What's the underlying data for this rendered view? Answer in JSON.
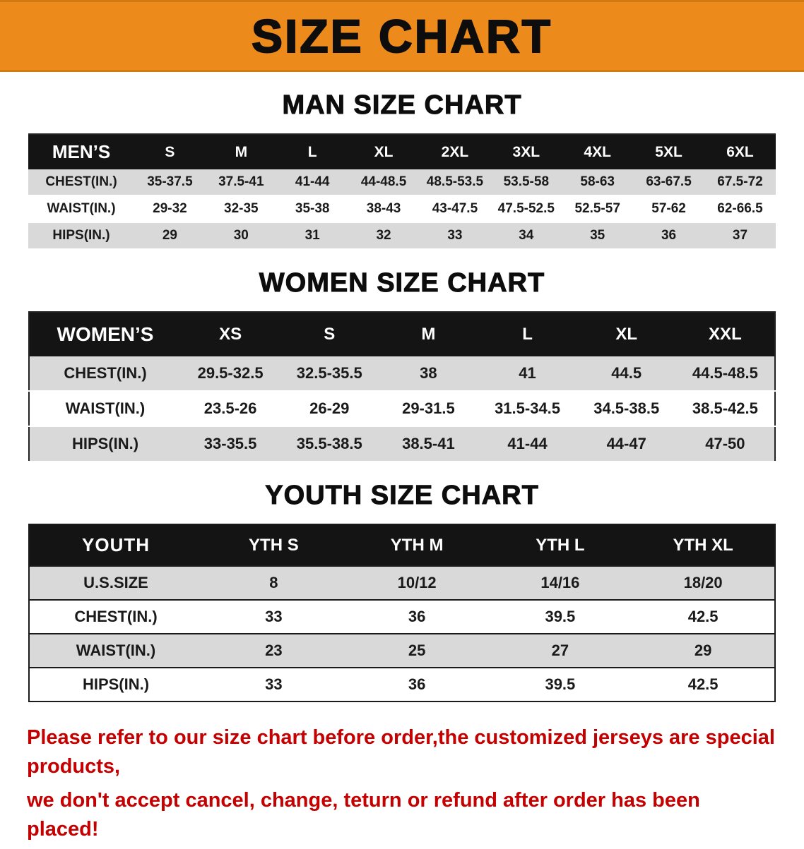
{
  "banner": {
    "title": "SIZE CHART"
  },
  "sections": {
    "men": {
      "title": "MAN SIZE CHART"
    },
    "women": {
      "title": "WOMEN SIZE CHART"
    },
    "youth": {
      "title": "YOUTH SIZE CHART"
    }
  },
  "tables": {
    "men": {
      "header": [
        "MEN’S",
        "S",
        "M",
        "L",
        "XL",
        "2XL",
        "3XL",
        "4XL",
        "5XL",
        "6XL"
      ],
      "rows": [
        [
          "CHEST(IN.)",
          "35-37.5",
          "37.5-41",
          "41-44",
          "44-48.5",
          "48.5-53.5",
          "53.5-58",
          "58-63",
          "63-67.5",
          "67.5-72"
        ],
        [
          "WAIST(IN.)",
          "29-32",
          "32-35",
          "35-38",
          "38-43",
          "43-47.5",
          "47.5-52.5",
          "52.5-57",
          "57-62",
          "62-66.5"
        ],
        [
          "HIPS(IN.)",
          "29",
          "30",
          "31",
          "32",
          "33",
          "34",
          "35",
          "36",
          "37"
        ]
      ]
    },
    "women": {
      "header": [
        "WOMEN’S",
        "XS",
        "S",
        "M",
        "L",
        "XL",
        "XXL"
      ],
      "rows": [
        [
          "CHEST(IN.)",
          "29.5-32.5",
          "32.5-35.5",
          "38",
          "41",
          "44.5",
          "44.5-48.5"
        ],
        [
          "WAIST(IN.)",
          "23.5-26",
          "26-29",
          "29-31.5",
          "31.5-34.5",
          "34.5-38.5",
          "38.5-42.5"
        ],
        [
          "HIPS(IN.)",
          "33-35.5",
          "35.5-38.5",
          "38.5-41",
          "41-44",
          "44-47",
          "47-50"
        ]
      ]
    },
    "youth": {
      "header": [
        "YOUTH",
        "YTH S",
        "YTH M",
        "YTH L",
        "YTH XL"
      ],
      "rows": [
        [
          "U.S.SIZE",
          "8",
          "10/12",
          "14/16",
          "18/20"
        ],
        [
          "CHEST(IN.)",
          "33",
          "36",
          "39.5",
          "42.5"
        ],
        [
          "WAIST(IN.)",
          "23",
          "25",
          "27",
          "29"
        ],
        [
          "HIPS(IN.)",
          "33",
          "36",
          "39.5",
          "42.5"
        ]
      ]
    }
  },
  "footer": {
    "line1": "Please refer to our size chart before order,the customized jerseys are special products,",
    "line2": "we don't accept cancel, change, teturn or refund after order has been placed!"
  },
  "colors": {
    "banner_bg": "#ED8A1C",
    "header_bg": "#141414",
    "row_alt": "#d9d9d9",
    "notice_red": "#c40000"
  }
}
